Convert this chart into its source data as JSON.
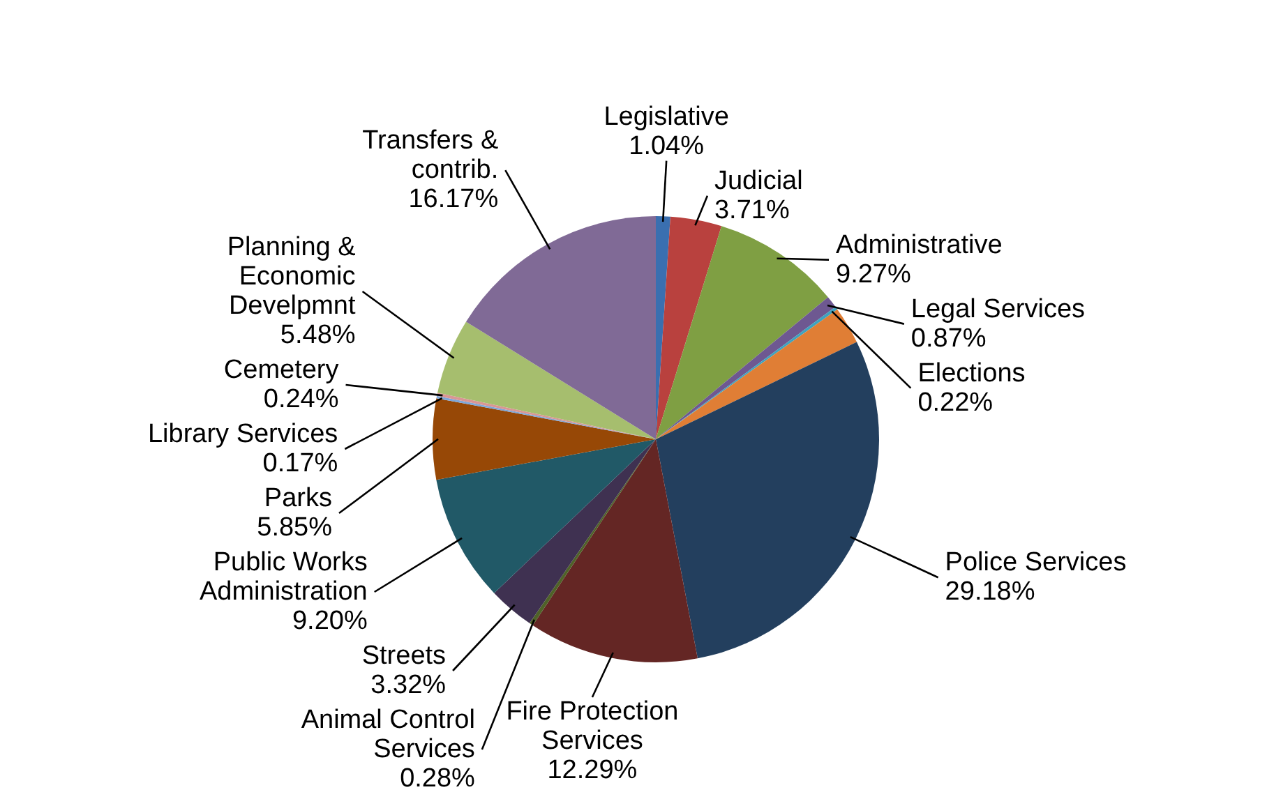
{
  "chart_data": {
    "type": "pie",
    "categories": [
      "Legislative",
      "Judicial",
      "Administrative",
      "Legal Services",
      "Elections",
      null,
      "Police Services",
      "Fire Protection Services",
      "Animal Control Services",
      "Streets",
      "Public Works Administration",
      "Parks",
      "Library Services",
      "Cemetery",
      "Planning & Economic Develpmnt",
      "Transfers & contrib."
    ],
    "values": [
      1.04,
      3.71,
      9.27,
      0.87,
      0.22,
      2.71,
      29.18,
      12.29,
      0.28,
      3.32,
      9.2,
      5.85,
      0.17,
      0.24,
      5.48,
      16.17
    ],
    "value_labels": [
      "1.04%",
      "3.71%",
      "9.27%",
      "0.87%",
      "0.22%",
      null,
      "29.18%",
      "12.29%",
      "0.28%",
      "3.32%",
      "9.20%",
      "5.85%",
      "0.17%",
      "0.24%",
      "5.48%",
      "16.17%"
    ],
    "colors": [
      "#3a6fb0",
      "#b9413e",
      "#7f9f43",
      "#6e5891",
      "#3fa3bf",
      "#e07e35",
      "#233f5e",
      "#642624",
      "#4f6228",
      "#3f3151",
      "#215967",
      "#974806",
      "#7da7d9",
      "#d99694",
      "#a6be6e",
      "#806a96"
    ]
  }
}
